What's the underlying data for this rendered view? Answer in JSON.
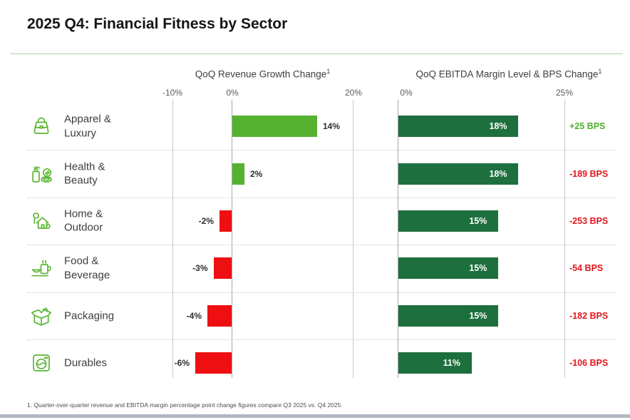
{
  "title": "2025 Q4: Financial Fitness by Sector",
  "charts": {
    "revenue": {
      "header": "QoQ Revenue Growth Change",
      "sup": "1",
      "axis_ticks": [
        "-10%",
        "0%",
        "20%"
      ]
    },
    "ebitda": {
      "header": "QoQ EBITDA Margin Level & BPS Change",
      "sup": "1",
      "axis_ticks": [
        "0%",
        "25%"
      ]
    }
  },
  "chart_data": [
    {
      "type": "bar",
      "orientation": "horizontal",
      "title": "QoQ Revenue Growth Change",
      "categories": [
        "Apparel & Luxury",
        "Health & Beauty",
        "Home & Outdoor",
        "Food & Beverage",
        "Packaging",
        "Durables"
      ],
      "values": [
        14,
        2,
        -2,
        -3,
        -4,
        -6
      ],
      "unit": "%",
      "xlim": [
        -10,
        20
      ],
      "tick_labels": [
        "-10%",
        "0%",
        "20%"
      ],
      "grid": "vertical-at-ticks",
      "positive_color": "#56b131",
      "negative_color": "#ed0f11"
    },
    {
      "type": "bar",
      "orientation": "horizontal",
      "title": "QoQ EBITDA Margin Level & BPS Change",
      "categories": [
        "Apparel & Luxury",
        "Health & Beauty",
        "Home & Outdoor",
        "Food & Beverage",
        "Packaging",
        "Durables"
      ],
      "series": [
        {
          "name": "EBITDA margin level (%)",
          "values": [
            18,
            18,
            15,
            15,
            15,
            11
          ]
        },
        {
          "name": "BPS change",
          "values": [
            25,
            -189,
            -253,
            -54,
            -182,
            -106
          ]
        }
      ],
      "xlim": [
        0,
        25
      ],
      "tick_labels": [
        "0%",
        "25%"
      ],
      "grid": "vertical-at-ticks",
      "bar_color": "#1d6f3d"
    }
  ],
  "sectors": [
    {
      "label": "Apparel &\nLuxury",
      "icon": "handbag-icon",
      "revenue_value": 14,
      "revenue_label": "14%",
      "ebitda_value": 18,
      "ebitda_label": "18%",
      "bps_value": 25,
      "bps_label": "+25 BPS"
    },
    {
      "label": "Health &\nBeauty",
      "icon": "cosmetics-icon",
      "revenue_value": 2,
      "revenue_label": "2%",
      "ebitda_value": 18,
      "ebitda_label": "18%",
      "bps_value": -189,
      "bps_label": "-189 BPS"
    },
    {
      "label": "Home &\nOutdoor",
      "icon": "house-tree-icon",
      "revenue_value": -2,
      "revenue_label": "-2%",
      "ebitda_value": 15,
      "ebitda_label": "15%",
      "bps_value": -253,
      "bps_label": "-253 BPS"
    },
    {
      "label": "Food &\nBeverage",
      "icon": "mug-bowl-icon",
      "revenue_value": -3,
      "revenue_label": "-3%",
      "ebitda_value": 15,
      "ebitda_label": "15%",
      "bps_value": -54,
      "bps_label": "-54 BPS"
    },
    {
      "label": "Packaging",
      "icon": "open-box-icon",
      "revenue_value": -4,
      "revenue_label": "-4%",
      "ebitda_value": 15,
      "ebitda_label": "15%",
      "bps_value": -182,
      "bps_label": "-182 BPS"
    },
    {
      "label": "Durables",
      "icon": "washing-machine-icon",
      "revenue_value": -6,
      "revenue_label": "-6%",
      "ebitda_value": 11,
      "ebitda_label": "11%",
      "bps_value": -106,
      "bps_label": "-106 BPS"
    }
  ],
  "colors": {
    "positive_green": "#56b131",
    "dark_green": "#1d6f3d",
    "negative_red": "#ed0f11",
    "bps_positive": "#4caf2e",
    "bps_negative": "#e4161c"
  },
  "footnote": "1. Quarter-over-quarter revenue and EBITDA margin percentage point change figures compare Q3 2025 vs. Q4 2025."
}
